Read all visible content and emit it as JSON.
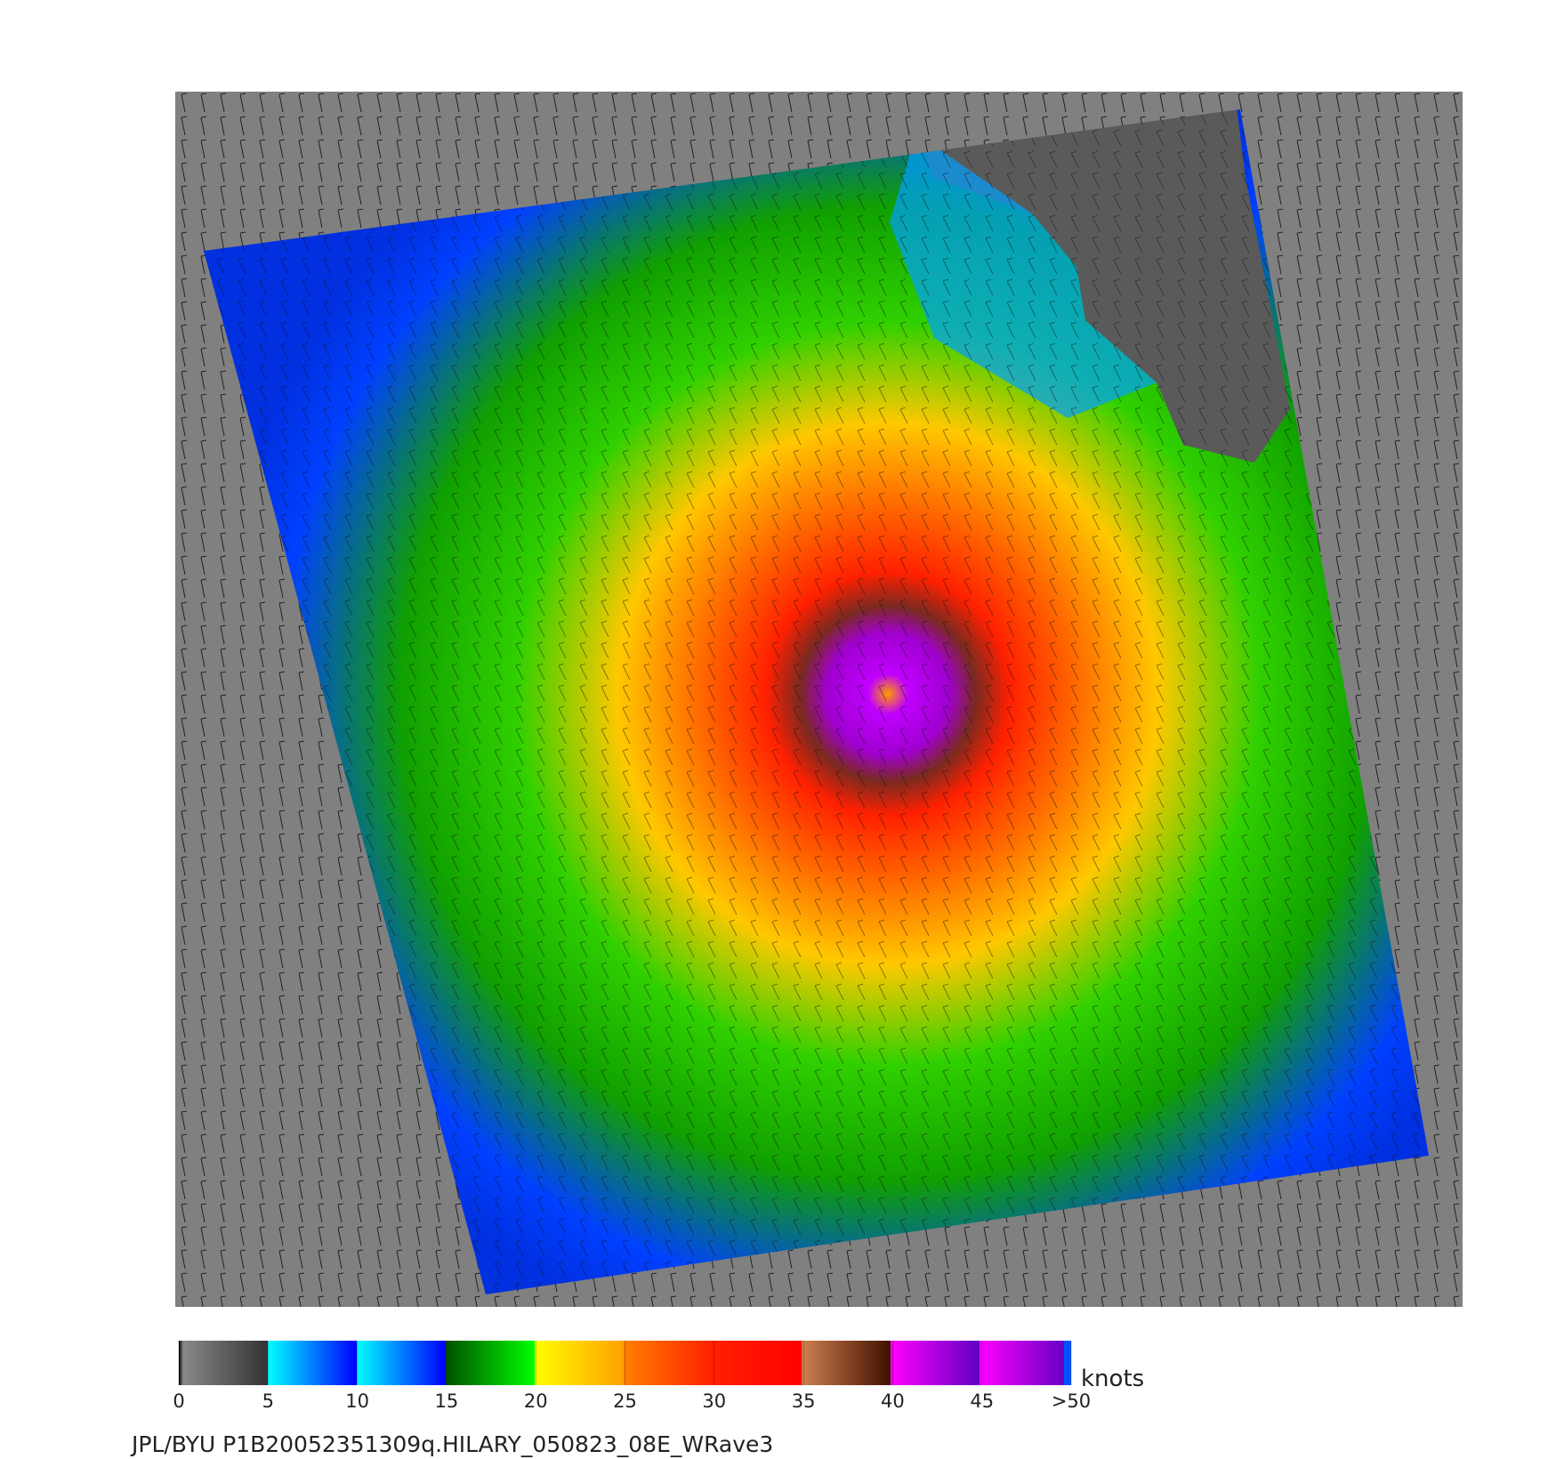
{
  "colorbar": {
    "lim": [
      0,
      50
    ],
    "ticks": [
      0,
      5,
      10,
      15,
      20,
      25,
      30,
      35,
      40,
      45,
      {
        "value": 50,
        "label": ">50"
      }
    ],
    "unit": "knots"
  },
  "caption": "JPL/BYU  P1B20052351309q.HILARY_050823_08E_WRave3"
}
